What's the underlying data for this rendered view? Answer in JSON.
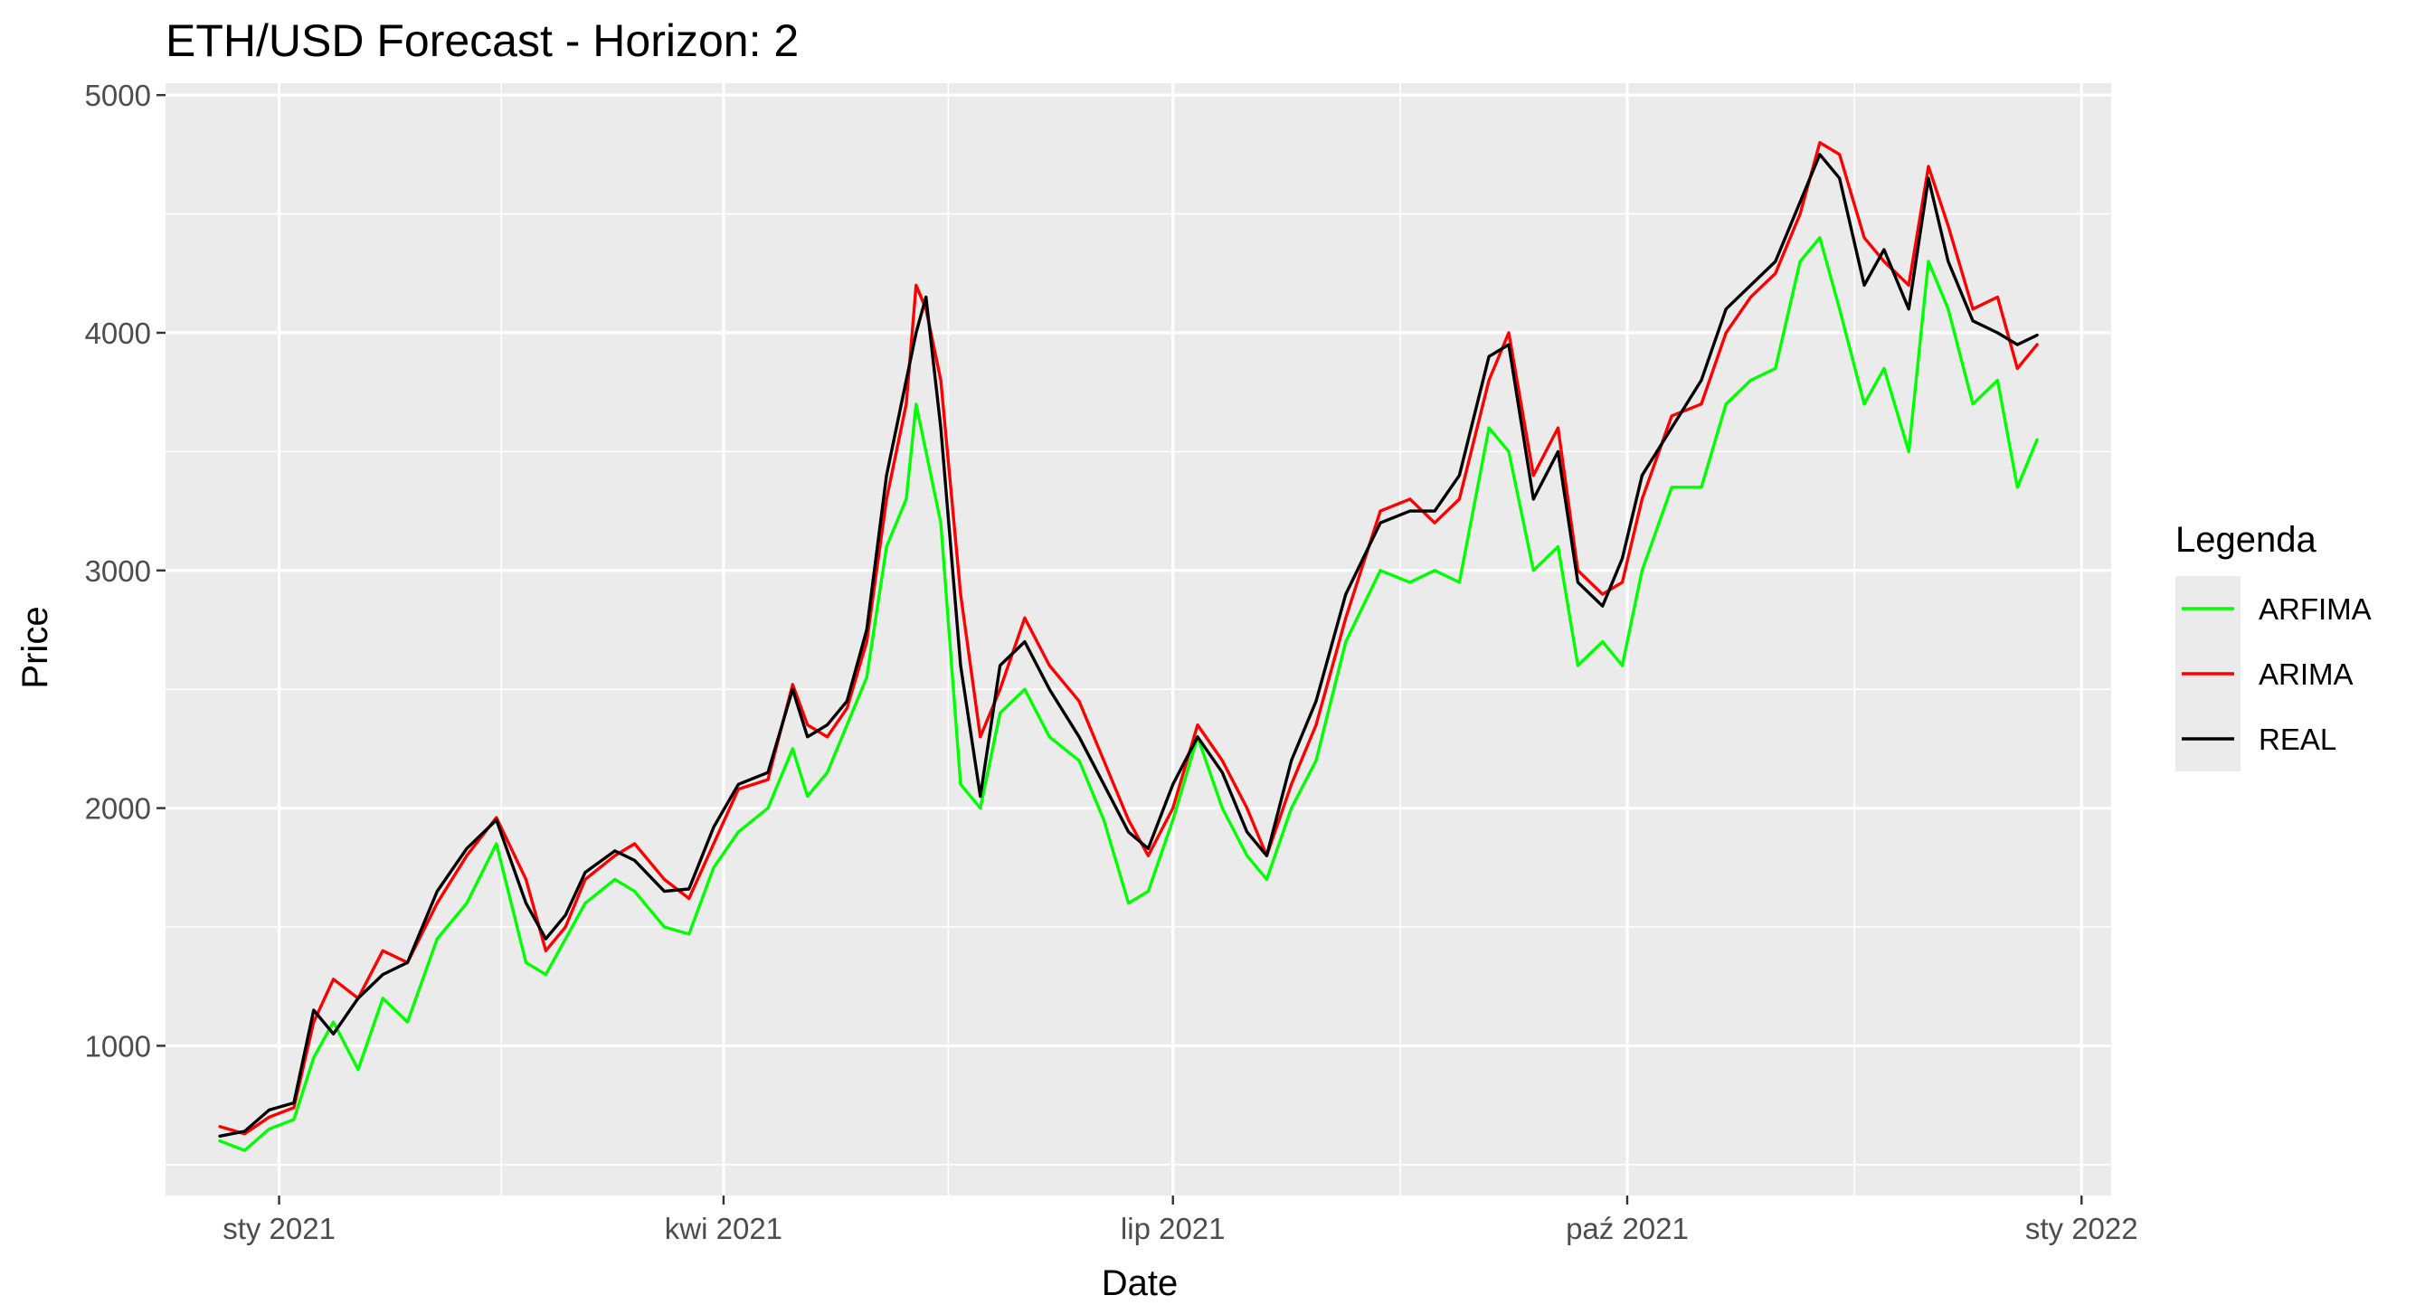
{
  "chart_data": {
    "type": "line",
    "title": "ETH/USD Forecast - Horizon: 2",
    "xlabel": "Date",
    "ylabel": "Price",
    "x_type": "date",
    "xlim": [
      "2020-12-09",
      "2022-01-07"
    ],
    "ylim": [
      370,
      5050
    ],
    "x_ticks": [
      {
        "date": "2021-01-01",
        "label": "sty 2021"
      },
      {
        "date": "2021-04-01",
        "label": "kwi 2021"
      },
      {
        "date": "2021-07-01",
        "label": "lip 2021"
      },
      {
        "date": "2021-10-01",
        "label": "paź 2021"
      },
      {
        "date": "2022-01-01",
        "label": "sty 2022"
      }
    ],
    "y_ticks": [
      1000,
      2000,
      3000,
      4000,
      5000
    ],
    "grid": true,
    "legend": {
      "title": "Legenda",
      "position": "right",
      "entries": [
        "ARFIMA",
        "ARIMA",
        "REAL"
      ]
    },
    "colors": {
      "ARFIMA": "#00ff00",
      "ARIMA": "#ff0000",
      "REAL": "#000000",
      "panel": "#ebebeb",
      "grid": "#ffffff"
    },
    "series": [
      {
        "name": "REAL",
        "x": [
          "2020-12-20",
          "2020-12-25",
          "2020-12-30",
          "2021-01-04",
          "2021-01-08",
          "2021-01-12",
          "2021-01-17",
          "2021-01-22",
          "2021-01-27",
          "2021-02-02",
          "2021-02-08",
          "2021-02-14",
          "2021-02-20",
          "2021-02-24",
          "2021-02-28",
          "2021-03-04",
          "2021-03-10",
          "2021-03-14",
          "2021-03-20",
          "2021-03-25",
          "2021-03-30",
          "2021-04-04",
          "2021-04-10",
          "2021-04-15",
          "2021-04-18",
          "2021-04-22",
          "2021-04-26",
          "2021-04-30",
          "2021-05-04",
          "2021-05-08",
          "2021-05-10",
          "2021-05-12",
          "2021-05-15",
          "2021-05-19",
          "2021-05-23",
          "2021-05-27",
          "2021-06-01",
          "2021-06-06",
          "2021-06-12",
          "2021-06-17",
          "2021-06-22",
          "2021-06-26",
          "2021-07-01",
          "2021-07-06",
          "2021-07-11",
          "2021-07-16",
          "2021-07-20",
          "2021-07-25",
          "2021-07-30",
          "2021-08-05",
          "2021-08-12",
          "2021-08-18",
          "2021-08-23",
          "2021-08-28",
          "2021-09-03",
          "2021-09-07",
          "2021-09-12",
          "2021-09-17",
          "2021-09-21",
          "2021-09-26",
          "2021-09-30",
          "2021-10-04",
          "2021-10-10",
          "2021-10-16",
          "2021-10-21",
          "2021-10-26",
          "2021-10-31",
          "2021-11-05",
          "2021-11-09",
          "2021-11-13",
          "2021-11-18",
          "2021-11-22",
          "2021-11-27",
          "2021-12-01",
          "2021-12-05",
          "2021-12-10",
          "2021-12-15",
          "2021-12-19",
          "2021-12-23"
        ],
        "values": [
          620,
          640,
          730,
          760,
          1150,
          1050,
          1200,
          1300,
          1350,
          1650,
          1830,
          1950,
          1600,
          1450,
          1550,
          1730,
          1820,
          1780,
          1650,
          1660,
          1920,
          2100,
          2150,
          2500,
          2300,
          2350,
          2450,
          2750,
          3400,
          3800,
          4000,
          4150,
          3600,
          2600,
          2050,
          2600,
          2700,
          2500,
          2300,
          2100,
          1900,
          1830,
          2100,
          2300,
          2150,
          1900,
          1800,
          2200,
          2450,
          2900,
          3200,
          3250,
          3250,
          3400,
          3900,
          3950,
          3300,
          3500,
          2950,
          2850,
          3050,
          3400,
          3600,
          3800,
          4100,
          4200,
          4300,
          4550,
          4750,
          4650,
          4200,
          4350,
          4100,
          4650,
          4300,
          4050,
          4000,
          3950,
          3990
        ]
      },
      {
        "name": "ARIMA",
        "x": [
          "2020-12-20",
          "2020-12-25",
          "2020-12-30",
          "2021-01-04",
          "2021-01-08",
          "2021-01-12",
          "2021-01-17",
          "2021-01-22",
          "2021-01-27",
          "2021-02-02",
          "2021-02-08",
          "2021-02-14",
          "2021-02-20",
          "2021-02-24",
          "2021-02-28",
          "2021-03-04",
          "2021-03-10",
          "2021-03-14",
          "2021-03-20",
          "2021-03-25",
          "2021-03-30",
          "2021-04-04",
          "2021-04-10",
          "2021-04-15",
          "2021-04-18",
          "2021-04-22",
          "2021-04-26",
          "2021-04-30",
          "2021-05-04",
          "2021-05-08",
          "2021-05-10",
          "2021-05-12",
          "2021-05-15",
          "2021-05-19",
          "2021-05-23",
          "2021-05-27",
          "2021-06-01",
          "2021-06-06",
          "2021-06-12",
          "2021-06-17",
          "2021-06-22",
          "2021-06-26",
          "2021-07-01",
          "2021-07-06",
          "2021-07-11",
          "2021-07-16",
          "2021-07-20",
          "2021-07-25",
          "2021-07-30",
          "2021-08-05",
          "2021-08-12",
          "2021-08-18",
          "2021-08-23",
          "2021-08-28",
          "2021-09-03",
          "2021-09-07",
          "2021-09-12",
          "2021-09-17",
          "2021-09-21",
          "2021-09-26",
          "2021-09-30",
          "2021-10-04",
          "2021-10-10",
          "2021-10-16",
          "2021-10-21",
          "2021-10-26",
          "2021-10-31",
          "2021-11-05",
          "2021-11-09",
          "2021-11-13",
          "2021-11-18",
          "2021-11-22",
          "2021-11-27",
          "2021-12-01",
          "2021-12-05",
          "2021-12-10",
          "2021-12-15",
          "2021-12-19",
          "2021-12-23"
        ],
        "values": [
          660,
          630,
          700,
          740,
          1100,
          1280,
          1200,
          1400,
          1350,
          1600,
          1800,
          1960,
          1700,
          1400,
          1500,
          1700,
          1800,
          1850,
          1700,
          1620,
          1850,
          2080,
          2120,
          2520,
          2350,
          2300,
          2420,
          2700,
          3300,
          3700,
          4200,
          4100,
          3800,
          2900,
          2300,
          2500,
          2800,
          2600,
          2450,
          2200,
          1950,
          1800,
          2000,
          2350,
          2200,
          2000,
          1800,
          2100,
          2350,
          2800,
          3250,
          3300,
          3200,
          3300,
          3800,
          4000,
          3400,
          3600,
          3000,
          2900,
          2950,
          3300,
          3650,
          3700,
          4000,
          4150,
          4250,
          4500,
          4800,
          4750,
          4400,
          4300,
          4200,
          4700,
          4450,
          4100,
          4150,
          3850,
          3950
        ]
      },
      {
        "name": "ARFIMA",
        "x": [
          "2020-12-20",
          "2020-12-25",
          "2020-12-30",
          "2021-01-04",
          "2021-01-08",
          "2021-01-12",
          "2021-01-17",
          "2021-01-22",
          "2021-01-27",
          "2021-02-02",
          "2021-02-08",
          "2021-02-14",
          "2021-02-20",
          "2021-02-24",
          "2021-02-28",
          "2021-03-04",
          "2021-03-10",
          "2021-03-14",
          "2021-03-20",
          "2021-03-25",
          "2021-03-30",
          "2021-04-04",
          "2021-04-10",
          "2021-04-15",
          "2021-04-18",
          "2021-04-22",
          "2021-04-26",
          "2021-04-30",
          "2021-05-04",
          "2021-05-08",
          "2021-05-10",
          "2021-05-12",
          "2021-05-15",
          "2021-05-19",
          "2021-05-23",
          "2021-05-27",
          "2021-06-01",
          "2021-06-06",
          "2021-06-12",
          "2021-06-17",
          "2021-06-22",
          "2021-06-26",
          "2021-07-01",
          "2021-07-06",
          "2021-07-11",
          "2021-07-16",
          "2021-07-20",
          "2021-07-25",
          "2021-07-30",
          "2021-08-05",
          "2021-08-12",
          "2021-08-18",
          "2021-08-23",
          "2021-08-28",
          "2021-09-03",
          "2021-09-07",
          "2021-09-12",
          "2021-09-17",
          "2021-09-21",
          "2021-09-26",
          "2021-09-30",
          "2021-10-04",
          "2021-10-10",
          "2021-10-16",
          "2021-10-21",
          "2021-10-26",
          "2021-10-31",
          "2021-11-05",
          "2021-11-09",
          "2021-11-13",
          "2021-11-18",
          "2021-11-22",
          "2021-11-27",
          "2021-12-01",
          "2021-12-05",
          "2021-12-10",
          "2021-12-15",
          "2021-12-19",
          "2021-12-23"
        ],
        "values": [
          600,
          560,
          650,
          690,
          950,
          1100,
          900,
          1200,
          1100,
          1450,
          1600,
          1850,
          1350,
          1300,
          1450,
          1600,
          1700,
          1650,
          1500,
          1470,
          1750,
          1900,
          2000,
          2250,
          2050,
          2150,
          2350,
          2550,
          3100,
          3300,
          3700,
          3500,
          3200,
          2100,
          2000,
          2400,
          2500,
          2300,
          2200,
          1950,
          1600,
          1650,
          1950,
          2300,
          2000,
          1800,
          1700,
          2000,
          2200,
          2700,
          3000,
          2950,
          3000,
          2950,
          3600,
          3500,
          3000,
          3100,
          2600,
          2700,
          2600,
          3000,
          3350,
          3350,
          3700,
          3800,
          3850,
          4300,
          4400,
          4100,
          3700,
          3850,
          3500,
          4300,
          4100,
          3700,
          3800,
          3350,
          3550
        ]
      }
    ]
  }
}
